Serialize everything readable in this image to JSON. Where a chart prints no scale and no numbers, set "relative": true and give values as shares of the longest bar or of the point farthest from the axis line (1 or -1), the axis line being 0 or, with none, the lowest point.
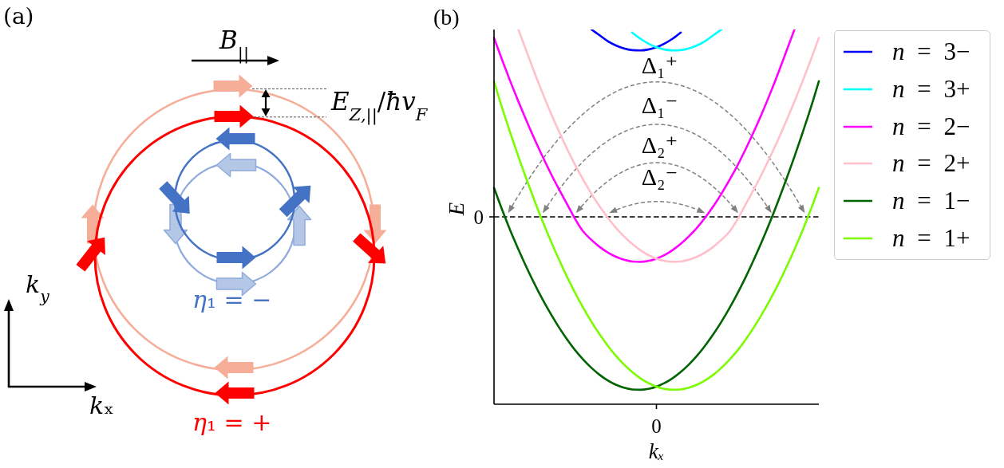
{
  "chart_data": [
    {
      "type": "other",
      "title": "(a)",
      "annotations": [
        "B$_{||}$",
        "E$_{Z,||}$/ħv$_{F}$",
        "k$_{y}$",
        "η₁ = −",
        "kₓ",
        "η₁ = +"
      ]
    },
    {
      "type": "line",
      "title": "(b)",
      "xlabel": "kₓ",
      "ylabel": "E",
      "relative": true,
      "legend": "right",
      "categories": [
        null,
        null,
        null,
        null,
        null,
        null,
        null,
        null,
        null,
        null,
        null,
        null,
        null,
        null,
        null,
        null,
        null,
        null,
        null,
        null,
        null,
        null,
        null,
        null,
        null,
        null,
        null,
        null,
        null,
        null,
        null,
        null,
        null,
        null,
        null,
        null,
        null,
        null,
        null,
        null,
        null
      ],
      "series": [
        {
          "name": "n = 3−",
          "color": "#0000ff",
          "values": [
            null,
            null,
            null,
            null,
            null,
            null,
            null,
            null,
            null,
            null,
            null,
            null,
            1.0,
            0.969,
            0.938,
            0.915,
            0.899,
            0.89,
            0.888,
            0.893,
            0.905,
            0.925,
            0.951,
            0.984,
            null,
            null,
            null,
            null,
            null,
            null,
            null,
            null,
            null,
            null,
            null,
            null,
            null,
            null,
            null,
            null,
            null
          ]
        },
        {
          "name": "n = 3+",
          "color": "#00ffff",
          "values": [
            null,
            null,
            null,
            null,
            null,
            null,
            null,
            null,
            null,
            null,
            null,
            null,
            null,
            null,
            null,
            null,
            null,
            0.984,
            0.951,
            0.925,
            0.905,
            0.893,
            0.888,
            0.89,
            0.899,
            0.915,
            0.938,
            0.969,
            1.0,
            null,
            null,
            null,
            null,
            null,
            null,
            null,
            null,
            null,
            null,
            null,
            null
          ]
        },
        {
          "name": "n = 2−",
          "color": "#ff00ff",
          "values": [
            0.955,
            0.837,
            0.724,
            0.616,
            0.513,
            0.414,
            0.32,
            0.231,
            0.147,
            0.068,
            -0.012,
            -0.079,
            -0.123,
            -0.16,
            -0.19,
            -0.213,
            -0.229,
            -0.238,
            -0.24,
            -0.235,
            -0.223,
            -0.204,
            -0.177,
            -0.144,
            -0.104,
            -0.058,
            -0.004,
            0.056,
            0.123,
            0.197,
            0.276,
            0.363,
            0.455,
            0.553,
            0.658,
            0.768,
            0.884,
            1.0,
            null,
            null,
            null
          ]
        },
        {
          "name": "n = 2+",
          "color": "#ffc0cb",
          "values": [
            null,
            null,
            null,
            1.0,
            0.884,
            0.768,
            0.658,
            0.553,
            0.455,
            0.363,
            0.276,
            0.197,
            0.123,
            0.056,
            -0.004,
            -0.058,
            -0.104,
            -0.144,
            -0.177,
            -0.204,
            -0.223,
            -0.235,
            -0.24,
            -0.238,
            -0.229,
            -0.213,
            -0.19,
            -0.16,
            -0.123,
            -0.079,
            -0.012,
            0.068,
            0.147,
            0.231,
            0.32,
            0.414,
            0.513,
            0.616,
            0.724,
            0.837,
            0.955
          ]
        },
        {
          "name": "n = 1−",
          "color": "#006400",
          "values": [
            0.155,
            0.038,
            -0.072,
            -0.173,
            -0.269,
            -0.359,
            -0.442,
            -0.519,
            -0.59,
            -0.654,
            -0.712,
            -0.762,
            -0.806,
            -0.843,
            -0.873,
            -0.896,
            -0.912,
            -0.921,
            -0.923,
            -0.918,
            -0.906,
            -0.887,
            -0.861,
            -0.828,
            -0.788,
            -0.741,
            -0.687,
            -0.627,
            -0.56,
            -0.487,
            -0.407,
            -0.321,
            -0.228,
            -0.13,
            -0.026,
            0.085,
            0.201,
            0.322,
            0.449,
            0.581,
            0.724
          ]
        },
        {
          "name": "n = 1+",
          "color": "#7cfc00",
          "values": [
            0.724,
            0.581,
            0.449,
            0.322,
            0.201,
            0.085,
            -0.026,
            -0.13,
            -0.228,
            -0.321,
            -0.407,
            -0.487,
            -0.56,
            -0.627,
            -0.687,
            -0.741,
            -0.788,
            -0.828,
            -0.861,
            -0.887,
            -0.906,
            -0.918,
            -0.923,
            -0.921,
            -0.912,
            -0.896,
            -0.873,
            -0.843,
            -0.806,
            -0.762,
            -0.712,
            -0.654,
            -0.59,
            -0.519,
            -0.442,
            -0.359,
            -0.269,
            -0.173,
            -0.072,
            0.038,
            0.155
          ]
        }
      ],
      "ref_lines": [
        {
          "axis": "y",
          "value": 0,
          "label": "0",
          "color": "#000000",
          "line_style": "dashed"
        }
      ],
      "annotations": [
        "Δ₁⁺",
        "Δ₁⁻",
        "Δ₂⁺",
        "Δ₂⁻",
        "0"
      ]
    }
  ]
}
